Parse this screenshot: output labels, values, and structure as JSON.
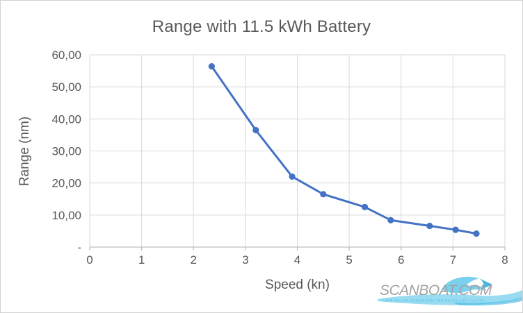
{
  "chart_data": {
    "type": "line",
    "title": "Range with 11.5 kWh Battery",
    "xlabel": "Speed (kn)",
    "ylabel": "Range (nm)",
    "xlim": [
      0,
      8
    ],
    "ylim": [
      0,
      60
    ],
    "x_ticks": [
      0,
      1,
      2,
      3,
      4,
      5,
      6,
      7,
      8
    ],
    "x_tick_labels": [
      "0",
      "1",
      "2",
      "3",
      "4",
      "5",
      "6",
      "7",
      "8"
    ],
    "y_ticks": [
      0,
      10,
      20,
      30,
      40,
      50,
      60
    ],
    "y_tick_labels": [
      "-",
      "10,00",
      "20,00",
      "30,00",
      "40,00",
      "50,00",
      "60,00"
    ],
    "grid": true,
    "legend": "none",
    "series": [
      {
        "name": "Range",
        "marker": "circle",
        "x": [
          2.35,
          3.2,
          3.9,
          4.5,
          5.3,
          5.8,
          6.55,
          7.05,
          7.45
        ],
        "y": [
          56.4,
          36.5,
          22.0,
          16.5,
          12.5,
          8.4,
          6.6,
          5.4,
          4.2
        ]
      }
    ],
    "colors": {
      "series": "#4472C4",
      "gridline": "#d9d9d9",
      "axis_line": "#bfbfbf",
      "text": "#595959"
    }
  },
  "watermark": {
    "text": "SCANBOAT.COM",
    "tagline": "YOUR ONLINE SHOWROOM FOR BOATS AND YACHTS",
    "text_color": "#9b9b9b",
    "wave_light": "#7dd2ee",
    "wave_dark": "#3fb6e2"
  }
}
